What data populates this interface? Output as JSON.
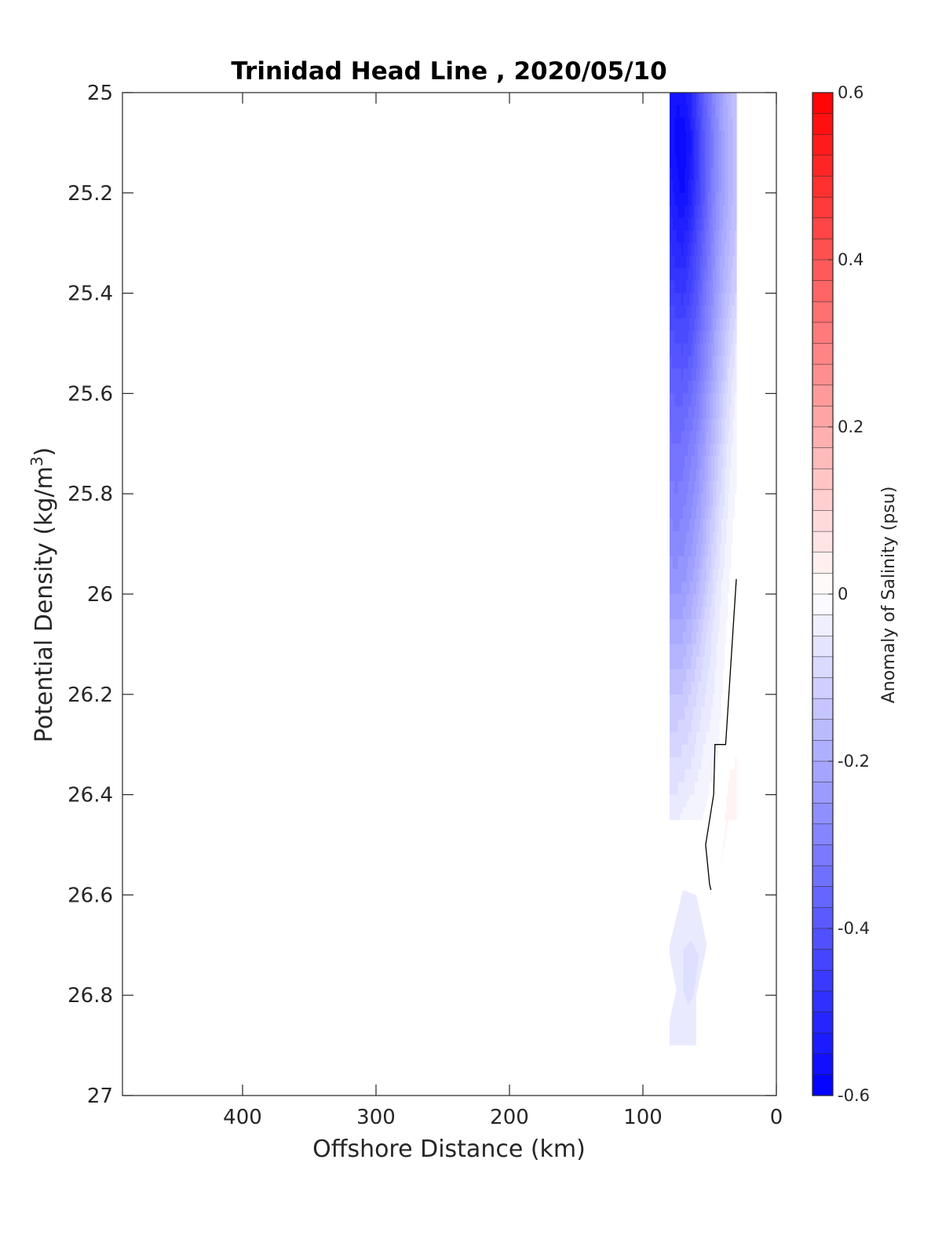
{
  "chart_data": {
    "type": "heatmap",
    "title": "Trinidad Head Line , 2020/05/10",
    "xlabel": "Offshore Distance (km)",
    "ylabel": "Potential Density (kg/m",
    "ylabel_superscript": "3",
    "ylabel_suffix": ")",
    "xlim": [
      490,
      0
    ],
    "ylim": [
      25,
      27
    ],
    "x_reversed": true,
    "y_reversed": true,
    "xticks": [
      400,
      300,
      200,
      100,
      0
    ],
    "xtick_labels": [
      "400",
      "300",
      "200",
      "100",
      "0"
    ],
    "yticks": [
      25,
      25.2,
      25.4,
      25.6,
      25.8,
      26,
      26.2,
      26.4,
      26.6,
      26.8,
      27
    ],
    "ytick_labels": [
      "25",
      "25.2",
      "25.4",
      "25.6",
      "25.8",
      "26",
      "26.2",
      "26.4",
      "26.6",
      "26.8",
      "27"
    ],
    "grid": false,
    "colorbar": {
      "label": "Anomaly of Salinity (psu)",
      "range": [
        -0.6,
        0.6
      ],
      "levels": 48,
      "ticks": [
        0.6,
        0.4,
        0.2,
        0,
        -0.2,
        -0.4,
        -0.6
      ],
      "tick_labels": [
        "0.6",
        "0.4",
        "0.2",
        "0",
        "-0.2",
        "-0.4",
        "-0.6"
      ],
      "low_color": "#0000ff",
      "mid_color": "#ffffff",
      "high_color": "#ff0000",
      "placement": "right"
    },
    "anomaly_field": {
      "x": [
        80,
        75,
        70,
        65,
        60,
        55,
        50,
        45,
        40,
        35,
        30
      ],
      "y": [
        25.0,
        25.1,
        25.2,
        25.3,
        25.4,
        25.5,
        25.6,
        25.7,
        25.8,
        25.9,
        26.0,
        26.1,
        26.2,
        26.3,
        26.4,
        26.45
      ],
      "values": [
        [
          -0.55,
          -0.56,
          -0.55,
          -0.52,
          -0.45,
          -0.38,
          -0.32,
          -0.26,
          -0.21,
          -0.17,
          -0.14
        ],
        [
          -0.55,
          -0.57,
          -0.58,
          -0.55,
          -0.48,
          -0.4,
          -0.34,
          -0.28,
          -0.22,
          -0.18,
          -0.15
        ],
        [
          -0.52,
          -0.55,
          -0.57,
          -0.53,
          -0.47,
          -0.4,
          -0.33,
          -0.27,
          -0.22,
          -0.18,
          -0.15
        ],
        [
          -0.49,
          -0.51,
          -0.52,
          -0.48,
          -0.43,
          -0.37,
          -0.31,
          -0.25,
          -0.2,
          -0.16,
          -0.13
        ],
        [
          -0.45,
          -0.46,
          -0.47,
          -0.44,
          -0.4,
          -0.34,
          -0.29,
          -0.23,
          -0.18,
          -0.14,
          -0.11
        ],
        [
          -0.4,
          -0.41,
          -0.42,
          -0.4,
          -0.36,
          -0.31,
          -0.26,
          -0.2,
          -0.15,
          -0.1,
          -0.06
        ],
        [
          -0.36,
          -0.37,
          -0.37,
          -0.35,
          -0.32,
          -0.27,
          -0.22,
          -0.17,
          -0.12,
          -0.07,
          -0.03
        ],
        [
          -0.33,
          -0.34,
          -0.33,
          -0.31,
          -0.28,
          -0.24,
          -0.19,
          -0.14,
          -0.09,
          -0.05,
          -0.02
        ],
        [
          -0.3,
          -0.31,
          -0.3,
          -0.28,
          -0.25,
          -0.21,
          -0.16,
          -0.11,
          -0.07,
          -0.03,
          -0.01
        ],
        [
          -0.27,
          -0.28,
          -0.27,
          -0.25,
          -0.22,
          -0.18,
          -0.13,
          -0.09,
          -0.05,
          -0.02,
          0.0
        ],
        [
          -0.24,
          -0.24,
          -0.23,
          -0.21,
          -0.18,
          -0.14,
          -0.1,
          -0.06,
          -0.03,
          -0.01,
          0.0
        ],
        [
          -0.19,
          -0.19,
          -0.18,
          -0.16,
          -0.13,
          -0.1,
          -0.07,
          -0.04,
          -0.02,
          0.0,
          0.0
        ],
        [
          -0.14,
          -0.14,
          -0.13,
          -0.11,
          -0.09,
          -0.07,
          -0.05,
          -0.03,
          -0.01,
          0.0,
          0.0
        ],
        [
          -0.1,
          -0.1,
          -0.09,
          -0.08,
          -0.06,
          -0.04,
          -0.03,
          -0.02,
          0.0,
          0.0,
          0.01
        ],
        [
          -0.06,
          -0.06,
          -0.05,
          -0.04,
          -0.03,
          -0.02,
          -0.01,
          0.0,
          0.0,
          0.02,
          0.02
        ],
        [
          -0.04,
          -0.04,
          -0.03,
          -0.02,
          -0.02,
          -0.01,
          0.0,
          0.0,
          0.01,
          0.02,
          0.02
        ]
      ]
    },
    "deep_patches": [
      {
        "anomaly": -0.04,
        "outline": [
          [
            80,
            26.7
          ],
          [
            70,
            26.59
          ],
          [
            60,
            26.6
          ],
          [
            52,
            26.7
          ],
          [
            60,
            26.8
          ],
          [
            60,
            26.9
          ],
          [
            80,
            26.9
          ],
          [
            80,
            26.85
          ],
          [
            75,
            26.79
          ],
          [
            80,
            26.72
          ]
        ]
      },
      {
        "anomaly": -0.08,
        "outline": [
          [
            70,
            26.71
          ],
          [
            64,
            26.69
          ],
          [
            58,
            26.72
          ],
          [
            62,
            26.8
          ],
          [
            66,
            26.82
          ],
          [
            70,
            26.79
          ]
        ]
      }
    ],
    "positive_patch": {
      "anomaly": 0.03,
      "outline": [
        [
          30,
          26.34
        ],
        [
          34,
          26.42
        ],
        [
          40,
          26.52
        ],
        [
          42,
          26.55
        ],
        [
          38,
          26.46
        ],
        [
          32,
          26.38
        ]
      ]
    },
    "zero_contour": [
      [
        30,
        25.97
      ],
      [
        38,
        26.3
      ],
      [
        46,
        26.3
      ],
      [
        47,
        26.4
      ],
      [
        53,
        26.5
      ],
      [
        50,
        26.58
      ],
      [
        49,
        26.59
      ]
    ]
  }
}
